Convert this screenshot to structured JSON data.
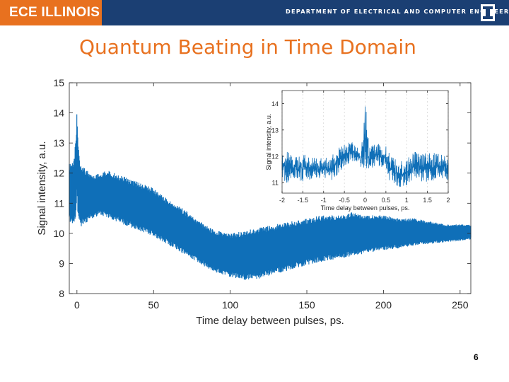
{
  "header": {
    "logo_text": "ECE ILLINOIS",
    "department": "DEPARTMENT OF ELECTRICAL AND COMPUTER ENGINEERING",
    "mark_icon": "illinois-block-i-icon",
    "bar_color": "#1b3f73",
    "logo_bg_color": "#e8711f"
  },
  "slide": {
    "title": "Quantum Beating in Time Domain",
    "page_number": "6",
    "title_color": "#e8711f"
  },
  "chart_data": [
    {
      "type": "line",
      "xlabel": "Time delay between pulses, ps.",
      "ylabel": "Signal intensity, a.u.",
      "xlim": [
        -5,
        257
      ],
      "ylim": [
        8,
        15
      ],
      "xticks": [
        0,
        50,
        100,
        150,
        200,
        250
      ],
      "yticks": [
        8,
        9,
        10,
        11,
        12,
        13,
        14,
        15
      ],
      "grid": false,
      "series_color": "#0f6fb8",
      "series": [
        {
          "x": [
            -5,
            -2,
            -0.5,
            0,
            0.5,
            2,
            5,
            10,
            15,
            20,
            25,
            30,
            40,
            50,
            60,
            70,
            80,
            90,
            100,
            110,
            120,
            130,
            140,
            150,
            160,
            170,
            180,
            190,
            200,
            210,
            220,
            230,
            240,
            250,
            257
          ],
          "upper": [
            12.3,
            12.4,
            13.3,
            14.2,
            13.3,
            12.4,
            12.2,
            11.9,
            12.0,
            12.1,
            12.0,
            11.9,
            11.7,
            11.5,
            11.1,
            10.8,
            10.4,
            10.1,
            10.0,
            10.1,
            10.2,
            10.3,
            10.4,
            10.5,
            10.6,
            10.6,
            10.7,
            10.6,
            10.6,
            10.5,
            10.5,
            10.4,
            10.3,
            10.3,
            10.3
          ],
          "lower": [
            10.4,
            10.3,
            10.6,
            11.2,
            10.7,
            10.2,
            10.3,
            10.5,
            10.6,
            10.5,
            10.4,
            10.3,
            10.1,
            9.9,
            9.6,
            9.3,
            9.0,
            8.7,
            8.55,
            8.45,
            8.5,
            8.65,
            8.8,
            8.95,
            9.05,
            9.15,
            9.25,
            9.35,
            9.45,
            9.5,
            9.6,
            9.65,
            9.7,
            9.75,
            9.8
          ]
        }
      ]
    },
    {
      "type": "line",
      "inset": true,
      "xlabel": "Time delay between pulses, ps.",
      "ylabel": "Signal intensity, a.u.",
      "xlim": [
        -2,
        2
      ],
      "ylim": [
        10.6,
        14.5
      ],
      "xticks": [
        -2,
        -1.5,
        -1,
        -0.5,
        0,
        0.5,
        1,
        1.5,
        2
      ],
      "xticklabels": [
        "-2",
        "-1.5",
        "-1",
        "-0.5",
        "0",
        "0.5",
        "1",
        "1.5",
        "2"
      ],
      "yticks": [
        11,
        12,
        13,
        14
      ],
      "grid": true,
      "series_color": "#0f6fb8",
      "series": [
        {
          "x": [
            -2,
            -1.5,
            -1.2,
            -1,
            -0.8,
            -0.6,
            -0.5,
            -0.3,
            -0.2,
            -0.1,
            0,
            0.1,
            0.2,
            0.3,
            0.4,
            0.5,
            0.6,
            0.8,
            1,
            1.2,
            1.5,
            1.8,
            2
          ],
          "upper": [
            12.2,
            12.1,
            12.0,
            11.9,
            12.1,
            12.4,
            12.5,
            12.6,
            12.4,
            12.2,
            14.2,
            12.4,
            12.6,
            12.6,
            12.5,
            12.4,
            12.1,
            11.8,
            11.9,
            12.2,
            12.1,
            12.2,
            12.0
          ],
          "lower": [
            11.0,
            11.0,
            11.2,
            11.1,
            11.1,
            11.4,
            11.6,
            11.8,
            11.7,
            11.4,
            11.5,
            11.4,
            11.6,
            11.7,
            11.5,
            11.3,
            11.0,
            10.8,
            10.9,
            11.1,
            11.0,
            11.1,
            11.0
          ]
        }
      ]
    }
  ]
}
